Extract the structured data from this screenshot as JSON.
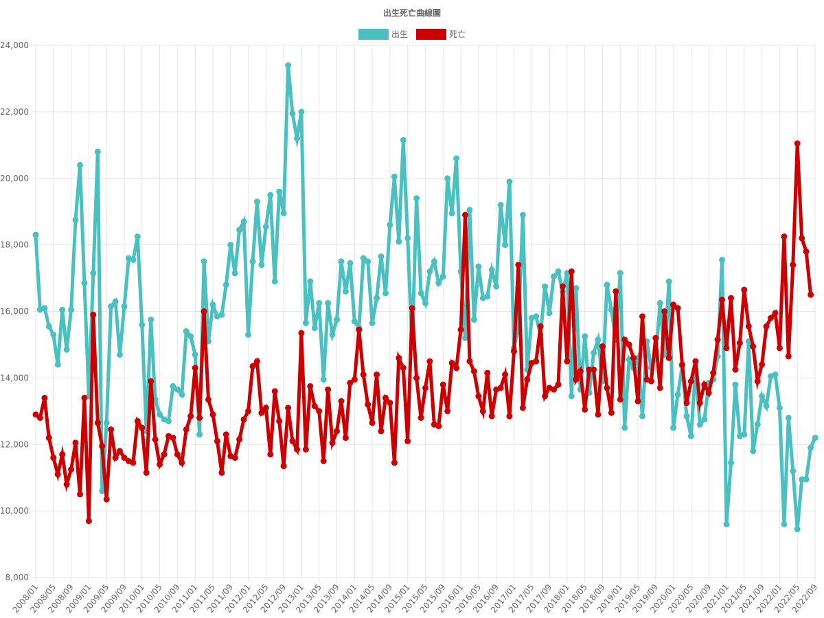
{
  "chart_data": {
    "type": "line",
    "title": "出生死亡曲線圖",
    "ylim": [
      8000,
      24000
    ],
    "yticks": [
      8000,
      10000,
      12000,
      14000,
      16000,
      18000,
      20000,
      22000,
      24000
    ],
    "ytick_labels": [
      "8,000",
      "10,000",
      "12,000",
      "14,000",
      "16,000",
      "18,000",
      "20,000",
      "22,000",
      "24,000"
    ],
    "x_start": "2008/01",
    "xtick_labels": [
      "2008/01",
      "2008/05",
      "2008/09",
      "2009/01",
      "2009/05",
      "2009/09",
      "2010/01",
      "2010/05",
      "2010/09",
      "2011/01",
      "2011/05",
      "2011/09",
      "2012/01",
      "2012/05",
      "2012/09",
      "2013/01",
      "2013/05",
      "2013/09",
      "2014/01",
      "2014/05",
      "2014/09",
      "2015/01",
      "2015/05",
      "2015/09",
      "2016/01",
      "2016/05",
      "2016/09",
      "2017/01",
      "2017/05",
      "2017/09",
      "2018/01",
      "2018/05",
      "2018/09",
      "2019/01",
      "2019/05",
      "2019/09",
      "2020/01",
      "2020/05",
      "2020/09",
      "2021/01",
      "2021/05",
      "2021/09",
      "2022/01",
      "2022/05",
      "2022/09"
    ],
    "grid": true,
    "legend_position": "top",
    "series": [
      {
        "name": "出生",
        "color": "#4bc0c0",
        "values": [
          18300,
          16050,
          16100,
          15550,
          15300,
          14400,
          16050,
          14850,
          16050,
          18750,
          20400,
          16850,
          13450,
          17150,
          20800,
          10600,
          12650,
          16150,
          16300,
          14700,
          16150,
          17600,
          17550,
          18250,
          15600,
          12400,
          15750,
          13350,
          12900,
          12750,
          12700,
          13750,
          13650,
          13500,
          15400,
          15250,
          14700,
          12300,
          17500,
          15100,
          16200,
          15850,
          15900,
          16800,
          18000,
          17150,
          18450,
          18700,
          15300,
          17500,
          19300,
          17400,
          18550,
          19500,
          16900,
          19600,
          18950,
          23400,
          21950,
          21200,
          22000,
          15650,
          16900,
          15500,
          16250,
          13950,
          16250,
          15300,
          15750,
          17500,
          16600,
          17450,
          15700,
          15500,
          17600,
          17500,
          15650,
          16400,
          17650,
          16550,
          18600,
          20050,
          18100,
          21150,
          18200,
          14900,
          19400,
          16550,
          16250,
          17200,
          17500,
          16850,
          17050,
          20000,
          18950,
          20600,
          17200,
          15200,
          19050,
          15750,
          17350,
          16400,
          16450,
          17250,
          16750,
          19200,
          18000,
          19900,
          14900,
          15500,
          18900,
          14250,
          15800,
          15850,
          15300,
          16750,
          15950,
          17050,
          17200,
          16600,
          17150,
          13450,
          16700,
          13650,
          15250,
          13550,
          14750,
          15150,
          13900,
          16800,
          16050,
          15150,
          17150,
          12500,
          14550,
          14300,
          14600,
          12850,
          15100,
          14300,
          14600,
          16250,
          14700,
          16900,
          12500,
          13500,
          14350,
          12850,
          12250,
          14250,
          12600,
          12750,
          13850,
          13950,
          14650,
          17550,
          9600,
          11450,
          13800,
          12250,
          12300,
          15100,
          11800,
          12600,
          13450,
          13150,
          14050,
          14100,
          13100,
          9600,
          12800,
          11200,
          9450,
          10950,
          10950,
          11900,
          12200
        ]
      },
      {
        "name": "死亡",
        "color": "#cc0000",
        "values": [
          12900,
          12800,
          13400,
          12200,
          11600,
          11100,
          11700,
          10800,
          11250,
          12050,
          10500,
          13400,
          9700,
          15900,
          12650,
          11950,
          10350,
          12450,
          11600,
          11800,
          11600,
          11500,
          11450,
          12700,
          12500,
          11150,
          13900,
          12150,
          11400,
          11700,
          12250,
          12200,
          11700,
          11450,
          12450,
          12850,
          14300,
          12800,
          16000,
          13350,
          12900,
          12100,
          11150,
          12300,
          11650,
          11600,
          12150,
          12750,
          13000,
          14350,
          14500,
          12950,
          13100,
          11700,
          13600,
          12700,
          11350,
          13100,
          12100,
          11850,
          15350,
          11850,
          13750,
          13150,
          13000,
          11500,
          13650,
          12050,
          12400,
          13300,
          12200,
          13850,
          13950,
          15450,
          14100,
          13200,
          12650,
          14100,
          12400,
          13400,
          13250,
          11450,
          14600,
          14300,
          12100,
          16100,
          14000,
          12800,
          13700,
          14500,
          12600,
          12550,
          13800,
          13000,
          14450,
          14300,
          15450,
          18900,
          14500,
          14200,
          13450,
          13000,
          14150,
          12850,
          13650,
          13700,
          14100,
          12850,
          14800,
          17400,
          13100,
          13950,
          14450,
          14500,
          15550,
          13450,
          13700,
          13650,
          13800,
          16750,
          14500,
          17200,
          13950,
          14200,
          13050,
          14250,
          14250,
          12900,
          14950,
          13700,
          12950,
          16600,
          13350,
          15150,
          15000,
          14600,
          13300,
          15850,
          13950,
          13900,
          15200,
          13700,
          16000,
          14600,
          16200,
          16100,
          14400,
          13250,
          13900,
          14500,
          13250,
          13800,
          13550,
          14150,
          15150,
          16350,
          14900,
          16400,
          14250,
          15050,
          16650,
          15550,
          14950,
          13900,
          14400,
          15550,
          15800,
          15950,
          14900,
          18250,
          14650,
          17400,
          21050,
          18200,
          17800,
          16500
        ]
      }
    ]
  }
}
